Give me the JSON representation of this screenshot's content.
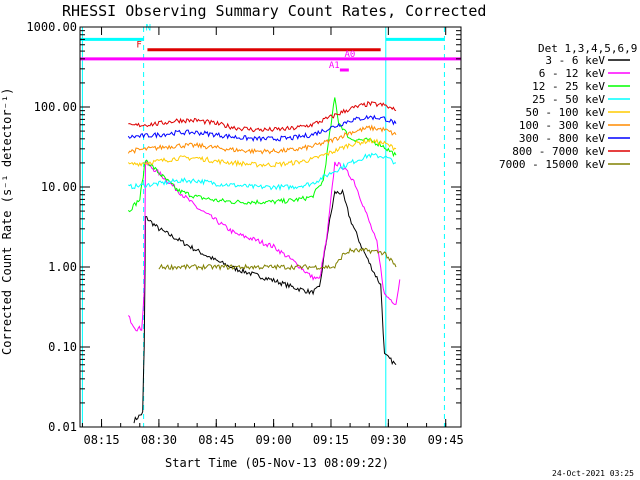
{
  "chart_data": {
    "type": "line",
    "title": "RHESSI Observing Summary Count Rates, Corrected",
    "xlabel": "Start Time (05-Nov-13 08:09:22)",
    "ylabel": "Corrected Count Rate (s⁻¹ detector⁻¹)",
    "y_scale": "log",
    "ylim": [
      0.01,
      1000
    ],
    "xlim": [
      "08:09:22",
      "09:49:00"
    ],
    "x_ticks": [
      "08:15",
      "08:30",
      "08:45",
      "09:00",
      "09:15",
      "09:30",
      "09:45"
    ],
    "y_ticks": [
      "0.01",
      "0.10",
      "1.00",
      "10.00",
      "100.00",
      "1000.00"
    ],
    "legend_title": "Det 1,3,4,5,6,9",
    "legend_position": "right",
    "timestamp": "24-Oct-2021 03:25",
    "series": [
      {
        "name": "3 - 6 keV",
        "color": "#000000",
        "points": [
          [
            "08:23:30",
            0.012
          ],
          [
            "08:25:45",
            0.015
          ],
          [
            "08:26:10",
            0.1
          ],
          [
            "08:26:30",
            4.2
          ],
          [
            "08:30",
            3.0
          ],
          [
            "08:35",
            2.2
          ],
          [
            "08:40",
            1.6
          ],
          [
            "08:45",
            1.2
          ],
          [
            "08:50",
            0.95
          ],
          [
            "08:55",
            0.8
          ],
          [
            "09:00",
            0.68
          ],
          [
            "09:05",
            0.56
          ],
          [
            "09:10",
            0.48
          ],
          [
            "09:12",
            0.55
          ],
          [
            "09:14",
            2.5
          ],
          [
            "09:16",
            8.5
          ],
          [
            "09:18",
            8.5
          ],
          [
            "09:20",
            4.0
          ],
          [
            "09:23",
            1.8
          ],
          [
            "09:26",
            0.9
          ],
          [
            "09:28",
            0.6
          ],
          [
            "09:29",
            0.08
          ],
          [
            "09:32",
            0.06
          ]
        ]
      },
      {
        "name": "6 - 12 keV",
        "color": "#ff00ff",
        "points": [
          [
            "08:22",
            0.24
          ],
          [
            "08:24",
            0.17
          ],
          [
            "08:25:30",
            0.17
          ],
          [
            "08:26:10",
            0.5
          ],
          [
            "08:26:30",
            20
          ],
          [
            "08:30",
            15
          ],
          [
            "08:35",
            9
          ],
          [
            "08:40",
            5.5
          ],
          [
            "08:45",
            3.8
          ],
          [
            "08:50",
            2.6
          ],
          [
            "08:55",
            2.2
          ],
          [
            "09:00",
            1.8
          ],
          [
            "09:05",
            1.2
          ],
          [
            "09:10",
            0.75
          ],
          [
            "09:12",
            0.7
          ],
          [
            "09:14",
            2.5
          ],
          [
            "09:16",
            20
          ],
          [
            "09:18",
            18
          ],
          [
            "09:21",
            12
          ],
          [
            "09:24",
            5
          ],
          [
            "09:27",
            2
          ],
          [
            "09:29",
            0.45
          ],
          [
            "09:32",
            0.35
          ],
          [
            "09:33",
            0.7
          ]
        ]
      },
      {
        "name": "12 - 25 keV",
        "color": "#00ff00",
        "points": [
          [
            "08:22",
            5
          ],
          [
            "08:25",
            7
          ],
          [
            "08:26:30",
            22
          ],
          [
            "08:30",
            15
          ],
          [
            "08:35",
            9
          ],
          [
            "08:40",
            7.5
          ],
          [
            "08:45",
            6.8
          ],
          [
            "08:50",
            6.5
          ],
          [
            "08:55",
            6.5
          ],
          [
            "09:00",
            6.5
          ],
          [
            "09:05",
            6.8
          ],
          [
            "09:10",
            7.5
          ],
          [
            "09:13",
            12
          ],
          [
            "09:15",
            60
          ],
          [
            "09:16",
            130
          ],
          [
            "09:17",
            65
          ],
          [
            "09:20",
            40
          ],
          [
            "09:25",
            38
          ],
          [
            "09:28",
            34
          ],
          [
            "09:32",
            25
          ]
        ]
      },
      {
        "name": "25 - 50 keV",
        "color": "#00ffff",
        "points": [
          [
            "08:22",
            10
          ],
          [
            "08:30",
            11
          ],
          [
            "08:35",
            12
          ],
          [
            "08:40",
            12
          ],
          [
            "08:45",
            11
          ],
          [
            "08:50",
            10.5
          ],
          [
            "08:55",
            10
          ],
          [
            "09:00",
            10
          ],
          [
            "09:05",
            10
          ],
          [
            "09:10",
            11
          ],
          [
            "09:15",
            15
          ],
          [
            "09:20",
            20
          ],
          [
            "09:25",
            25
          ],
          [
            "09:29",
            24
          ],
          [
            "09:32",
            20
          ]
        ]
      },
      {
        "name": "50 - 100 keV",
        "color": "#ffcc00",
        "points": [
          [
            "08:22",
            19
          ],
          [
            "08:30",
            21
          ],
          [
            "08:35",
            23
          ],
          [
            "08:40",
            23
          ],
          [
            "08:45",
            21
          ],
          [
            "08:50",
            20
          ],
          [
            "08:55",
            19
          ],
          [
            "09:00",
            19
          ],
          [
            "09:05",
            20
          ],
          [
            "09:10",
            22
          ],
          [
            "09:15",
            27
          ],
          [
            "09:20",
            34
          ],
          [
            "09:25",
            38
          ],
          [
            "09:29",
            35
          ],
          [
            "09:32",
            30
          ]
        ]
      },
      {
        "name": "100 - 300 keV",
        "color": "#ff8c00",
        "points": [
          [
            "08:22",
            28
          ],
          [
            "08:30",
            31
          ],
          [
            "08:35",
            33
          ],
          [
            "08:40",
            33
          ],
          [
            "08:45",
            31
          ],
          [
            "08:50",
            29
          ],
          [
            "08:55",
            28
          ],
          [
            "09:00",
            28
          ],
          [
            "09:05",
            29
          ],
          [
            "09:10",
            32
          ],
          [
            "09:15",
            38
          ],
          [
            "09:20",
            48
          ],
          [
            "09:25",
            55
          ],
          [
            "09:29",
            52
          ],
          [
            "09:32",
            45
          ]
        ]
      },
      {
        "name": "300 - 800 keV",
        "color": "#0000ff",
        "points": [
          [
            "08:22",
            42
          ],
          [
            "08:30",
            45
          ],
          [
            "08:35",
            48
          ],
          [
            "08:40",
            48
          ],
          [
            "08:45",
            45
          ],
          [
            "08:50",
            42
          ],
          [
            "08:55",
            40
          ],
          [
            "09:00",
            40
          ],
          [
            "09:05",
            41
          ],
          [
            "09:10",
            45
          ],
          [
            "09:15",
            55
          ],
          [
            "09:20",
            68
          ],
          [
            "09:25",
            75
          ],
          [
            "09:29",
            72
          ],
          [
            "09:32",
            62
          ]
        ]
      },
      {
        "name": "800 - 7000 keV",
        "color": "#dd0000",
        "points": [
          [
            "08:22",
            58
          ],
          [
            "08:30",
            62
          ],
          [
            "08:35",
            68
          ],
          [
            "08:40",
            68
          ],
          [
            "08:45",
            62
          ],
          [
            "08:50",
            55
          ],
          [
            "08:55",
            52
          ],
          [
            "09:00",
            52
          ],
          [
            "09:05",
            54
          ],
          [
            "09:10",
            60
          ],
          [
            "09:15",
            75
          ],
          [
            "09:20",
            95
          ],
          [
            "09:25",
            110
          ],
          [
            "09:29",
            105
          ],
          [
            "09:32",
            90
          ]
        ]
      },
      {
        "name": "7000 - 15000 keV",
        "color": "#808000",
        "points": [
          [
            "08:30",
            1.0
          ],
          [
            "09:09",
            1.0
          ],
          [
            "09:12",
            1.0
          ],
          [
            "09:16",
            1.0
          ],
          [
            "09:18",
            1.4
          ],
          [
            "09:20",
            1.6
          ],
          [
            "09:25",
            1.6
          ],
          [
            "09:29",
            1.5
          ],
          [
            "09:32",
            1.0
          ]
        ]
      }
    ],
    "vertical_lines": [
      {
        "time": "08:10:00",
        "color": "#00ffff",
        "style": "solid"
      },
      {
        "time": "08:26:00",
        "color": "#00ffff",
        "style": "dashed"
      },
      {
        "time": "09:29:20",
        "color": "#00ffff",
        "style": "solid"
      },
      {
        "time": "09:44:40",
        "color": "#00ffff",
        "style": "dashed"
      }
    ],
    "flag_bars": [
      {
        "label": "",
        "color": "#00ffff",
        "y": 700,
        "start": "08:09:22",
        "end": "08:26:00"
      },
      {
        "label": "",
        "color": "#00ffff",
        "y": 700,
        "start": "09:29:20",
        "end": "09:44:40"
      },
      {
        "label": "N",
        "color": "#00ffff",
        "y": 850,
        "start": "08:26:00",
        "end": "08:26:00"
      },
      {
        "label": "F",
        "color": "#dd0000",
        "y": 520,
        "start": "08:27:00",
        "end": "09:28:00"
      },
      {
        "label": "",
        "color": "#ff00ff",
        "y": 400,
        "start": "08:09:22",
        "end": "09:49:00"
      },
      {
        "label": "A0",
        "color": "#ff00ff",
        "y": 400,
        "start": "09:18:00",
        "end": "09:18:00"
      },
      {
        "label": "A1",
        "color": "#ff00ff",
        "y": 290,
        "start": "09:17:20",
        "end": "09:19:40"
      }
    ]
  }
}
